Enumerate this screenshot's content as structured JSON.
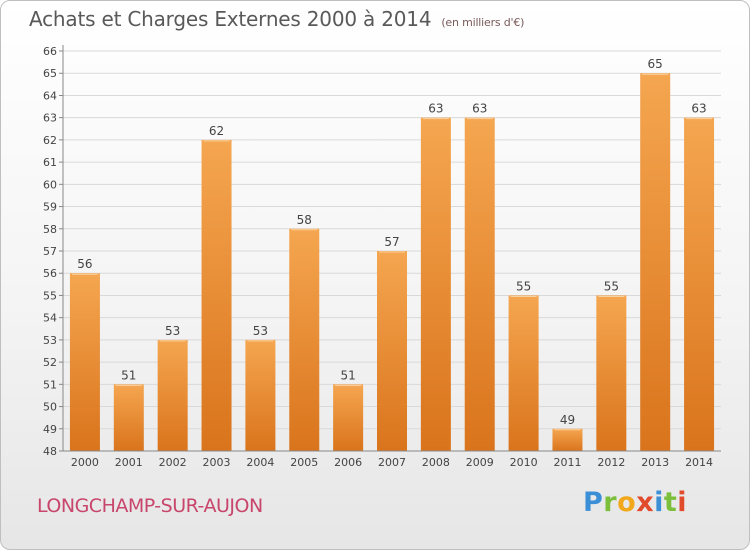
{
  "title": "Achats et Charges Externes 2000 à 2014",
  "subtitle": "(en milliers d'€)",
  "location": "LONGCHAMP-SUR-AUJON",
  "logo": {
    "letters": [
      "P",
      "r",
      "o",
      "x",
      "i",
      "t",
      "i"
    ],
    "colors": [
      "#3a8fd6",
      "#7bbf3a",
      "#f2a81d",
      "#e24a2c",
      "#3a8fd6",
      "#7bbf3a",
      "#e24a2c"
    ]
  },
  "chart_data": {
    "type": "bar",
    "categories": [
      "2000",
      "2001",
      "2002",
      "2003",
      "2004",
      "2005",
      "2006",
      "2007",
      "2008",
      "2009",
      "2010",
      "2011",
      "2012",
      "2013",
      "2014"
    ],
    "values": [
      56,
      51,
      53,
      62,
      53,
      58,
      51,
      57,
      63,
      63,
      55,
      49,
      55,
      65,
      63
    ],
    "ylim": [
      48,
      66
    ],
    "yticks": [
      48,
      49,
      50,
      51,
      52,
      53,
      54,
      55,
      56,
      57,
      58,
      59,
      60,
      61,
      62,
      63,
      64,
      65,
      66
    ],
    "grid": true,
    "bar_color_top": "#f5a650",
    "bar_color_bottom": "#d9741c"
  }
}
